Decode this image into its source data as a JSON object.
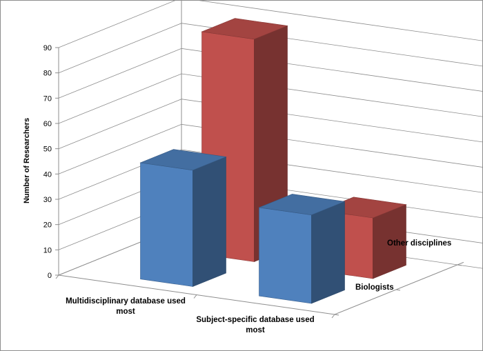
{
  "chart_data": {
    "type": "bar",
    "style": "3d-column",
    "title": "",
    "ylabel": "Number of Researchers",
    "ylim": [
      0,
      90
    ],
    "yticks": [
      0,
      10,
      20,
      30,
      40,
      50,
      60,
      70,
      80,
      90
    ],
    "grid": true,
    "categories": [
      [
        "Multidisciplinary database used",
        "most"
      ],
      [
        "Subject-specific database used",
        "most"
      ]
    ],
    "series": [
      {
        "name": "Biologists",
        "color": "#4f81bd",
        "values": [
          46,
          35
        ]
      },
      {
        "name": "Other disciplines",
        "color": "#c0504d",
        "values": [
          88,
          24
        ]
      }
    ],
    "legend": "none"
  }
}
